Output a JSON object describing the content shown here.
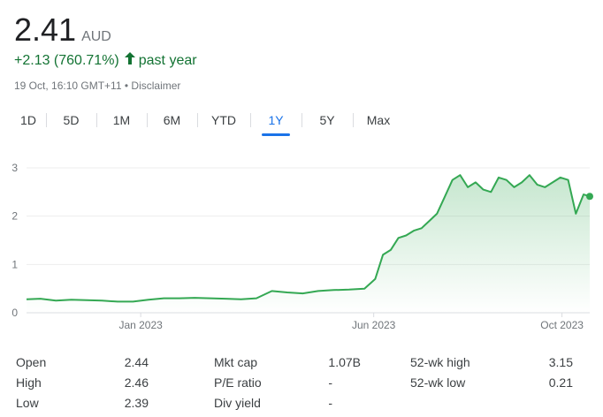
{
  "quote": {
    "price": "2.41",
    "currency": "AUD",
    "change": "+2.13 (760.71%)",
    "change_arrow": "arrow-up-icon",
    "period": "past year",
    "timestamp": "19 Oct, 16:10 GMT+11",
    "disclaimer": "Disclaimer",
    "colors": {
      "positive": "#137333",
      "line": "#34a853",
      "accent": "#1a73e8"
    }
  },
  "tabs": [
    {
      "label": "1D"
    },
    {
      "label": "5D"
    },
    {
      "label": "1M"
    },
    {
      "label": "6M"
    },
    {
      "label": "YTD"
    },
    {
      "label": "1Y",
      "active": true
    },
    {
      "label": "5Y"
    },
    {
      "label": "Max"
    }
  ],
  "chart_data": {
    "type": "area",
    "y_ticks": [
      "0",
      "1",
      "2",
      "3"
    ],
    "ylim": [
      0,
      3
    ],
    "x_ticks": [
      "Jan 2023",
      "Jun 2023",
      "Oct 2023"
    ],
    "grid": true,
    "series": [
      {
        "x": [
          "2022-10-19",
          "2022-10-28",
          "2022-11-07",
          "2022-11-17",
          "2022-11-27",
          "2022-12-07",
          "2022-12-17",
          "2022-12-27",
          "2023-01-06",
          "2023-01-16",
          "2023-01-26",
          "2023-02-05",
          "2023-02-15",
          "2023-02-25",
          "2023-03-07",
          "2023-03-17",
          "2023-03-27",
          "2023-04-06",
          "2023-04-16",
          "2023-04-26",
          "2023-05-06",
          "2023-05-16",
          "2023-05-26",
          "2023-06-02",
          "2023-06-07",
          "2023-06-12",
          "2023-06-17",
          "2023-06-22",
          "2023-06-27",
          "2023-07-02",
          "2023-07-07",
          "2023-07-12",
          "2023-07-17",
          "2023-07-22",
          "2023-07-27",
          "2023-08-01",
          "2023-08-06",
          "2023-08-11",
          "2023-08-16",
          "2023-08-21",
          "2023-08-26",
          "2023-08-31",
          "2023-09-05",
          "2023-09-10",
          "2023-09-15",
          "2023-09-20",
          "2023-09-25",
          "2023-09-30",
          "2023-10-05",
          "2023-10-10",
          "2023-10-15",
          "2023-10-19"
        ],
        "values": [
          0.28,
          0.29,
          0.25,
          0.27,
          0.26,
          0.25,
          0.23,
          0.23,
          0.27,
          0.3,
          0.3,
          0.31,
          0.3,
          0.29,
          0.28,
          0.3,
          0.45,
          0.42,
          0.4,
          0.45,
          0.47,
          0.48,
          0.5,
          0.7,
          1.2,
          1.3,
          1.55,
          1.6,
          1.7,
          1.75,
          1.9,
          2.05,
          2.4,
          2.75,
          2.85,
          2.6,
          2.7,
          2.55,
          2.5,
          2.8,
          2.75,
          2.6,
          2.7,
          2.85,
          2.65,
          2.6,
          2.7,
          2.8,
          2.75,
          2.05,
          2.45,
          2.41
        ]
      }
    ]
  },
  "stats": [
    [
      {
        "label": "Open",
        "value": "2.44"
      },
      {
        "label": "Mkt cap",
        "value": "1.07B"
      },
      {
        "label": "52-wk high",
        "value": "3.15"
      }
    ],
    [
      {
        "label": "High",
        "value": "2.46"
      },
      {
        "label": "P/E ratio",
        "value": "-"
      },
      {
        "label": "52-wk low",
        "value": "0.21"
      }
    ],
    [
      {
        "label": "Low",
        "value": "2.39"
      },
      {
        "label": "Div yield",
        "value": "-"
      },
      {
        "label": "",
        "value": ""
      }
    ]
  ]
}
